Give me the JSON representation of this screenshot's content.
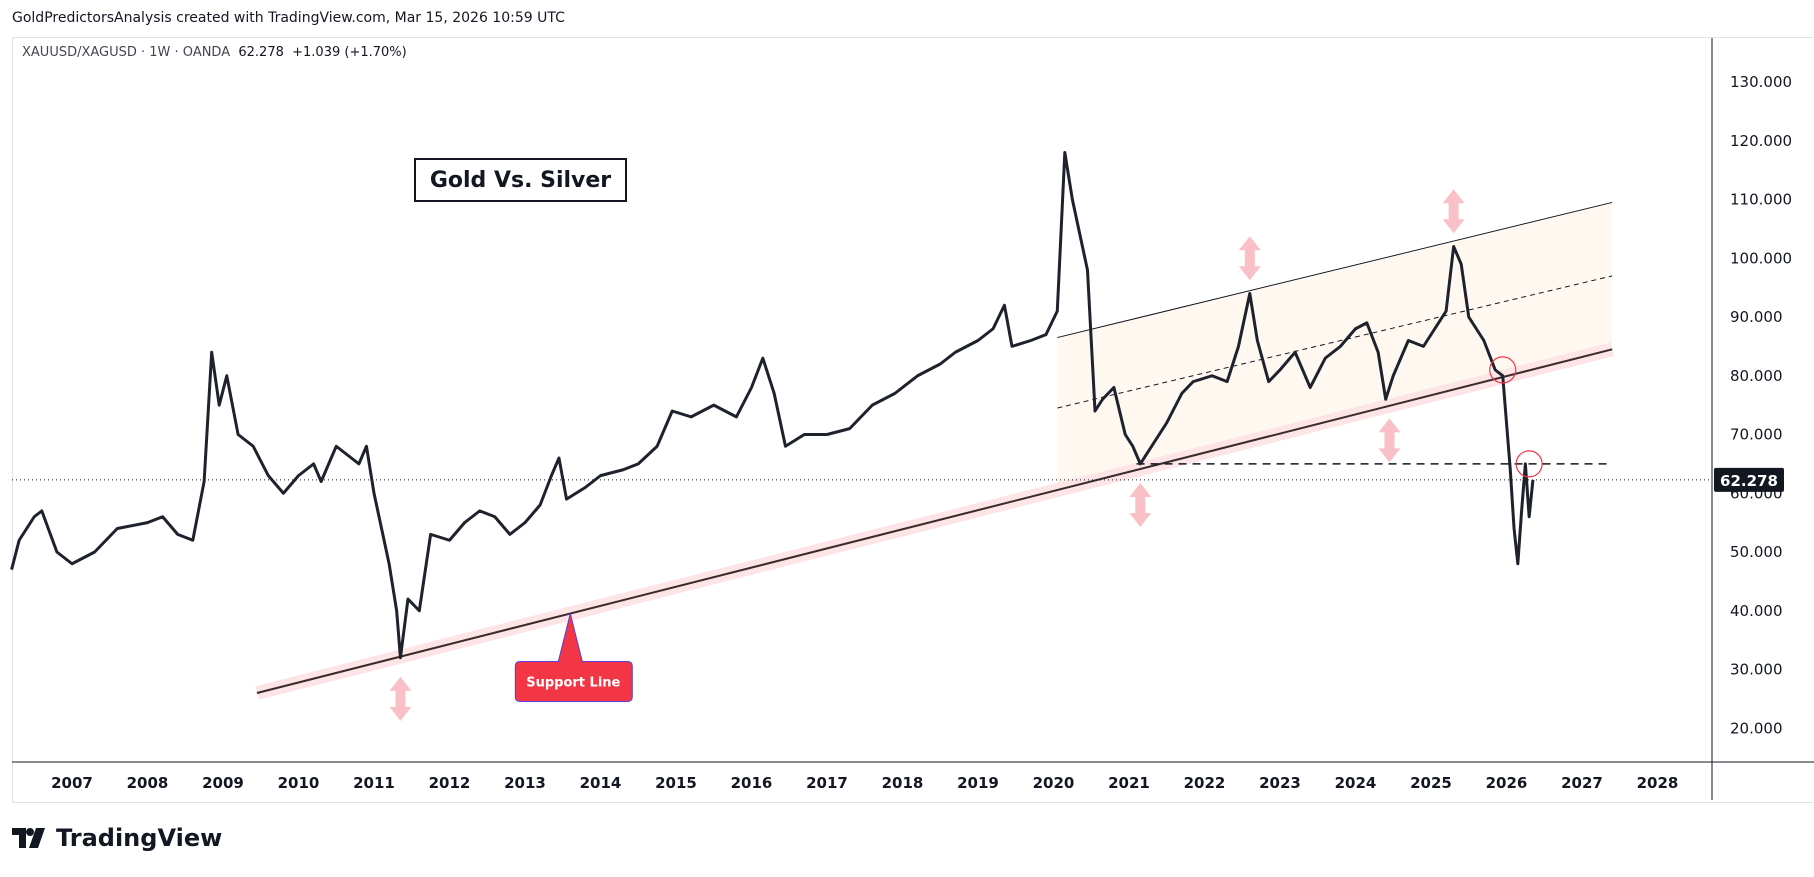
{
  "header": {
    "credit": "GoldPredictorsAnalysis created with TradingView.com, Mar 15, 2026 10:59 UTC"
  },
  "legend": {
    "symbol": "XAUUSD/XAGUSD · 1W · OANDA",
    "price": "62.278",
    "change": "+1.039 (+1.70%)"
  },
  "annotations": {
    "title": "Gold Vs. Silver",
    "callout": "Support Line"
  },
  "brand": {
    "name": "TradingView"
  },
  "chart_data": {
    "type": "line",
    "title": "Gold Vs. Silver",
    "series_name": "XAUUSD/XAGUSD",
    "current_price": 62.278,
    "current_price_label": "62.278",
    "ylim": [
      12,
      138
    ],
    "xlim": [
      2006.2,
      2029.3
    ],
    "yticks": [
      "130.000",
      "120.000",
      "110.000",
      "100.000",
      "90.000",
      "80.000",
      "70.000",
      "60.000",
      "50.000",
      "40.000",
      "30.000",
      "20.000"
    ],
    "ytick_values": [
      130,
      120,
      110,
      100,
      90,
      80,
      70,
      60,
      50,
      40,
      30,
      20
    ],
    "xticks": [
      "2007",
      "2008",
      "2009",
      "2010",
      "2011",
      "2012",
      "2013",
      "2014",
      "2015",
      "2016",
      "2017",
      "2018",
      "2019",
      "2020",
      "2021",
      "2022",
      "2023",
      "2024",
      "2025",
      "2026",
      "2027",
      "2028"
    ],
    "points": [
      [
        2006.2,
        47
      ],
      [
        2006.3,
        52
      ],
      [
        2006.5,
        56
      ],
      [
        2006.6,
        57
      ],
      [
        2006.8,
        50
      ],
      [
        2007.0,
        48
      ],
      [
        2007.3,
        50
      ],
      [
        2007.6,
        54
      ],
      [
        2008.0,
        55
      ],
      [
        2008.2,
        56
      ],
      [
        2008.4,
        53
      ],
      [
        2008.6,
        52
      ],
      [
        2008.75,
        62
      ],
      [
        2008.85,
        84
      ],
      [
        2008.95,
        75
      ],
      [
        2009.05,
        80
      ],
      [
        2009.2,
        70
      ],
      [
        2009.4,
        68
      ],
      [
        2009.6,
        63
      ],
      [
        2009.8,
        60
      ],
      [
        2010.0,
        63
      ],
      [
        2010.2,
        65
      ],
      [
        2010.3,
        62
      ],
      [
        2010.5,
        68
      ],
      [
        2010.8,
        65
      ],
      [
        2010.9,
        68
      ],
      [
        2011.0,
        60
      ],
      [
        2011.2,
        48
      ],
      [
        2011.3,
        40
      ],
      [
        2011.35,
        32
      ],
      [
        2011.45,
        42
      ],
      [
        2011.6,
        40
      ],
      [
        2011.75,
        53
      ],
      [
        2012.0,
        52
      ],
      [
        2012.2,
        55
      ],
      [
        2012.4,
        57
      ],
      [
        2012.6,
        56
      ],
      [
        2012.8,
        53
      ],
      [
        2013.0,
        55
      ],
      [
        2013.2,
        58
      ],
      [
        2013.35,
        63
      ],
      [
        2013.45,
        66
      ],
      [
        2013.55,
        59
      ],
      [
        2013.8,
        61
      ],
      [
        2014.0,
        63
      ],
      [
        2014.3,
        64
      ],
      [
        2014.5,
        65
      ],
      [
        2014.75,
        68
      ],
      [
        2014.95,
        74
      ],
      [
        2015.2,
        73
      ],
      [
        2015.5,
        75
      ],
      [
        2015.8,
        73
      ],
      [
        2016.0,
        78
      ],
      [
        2016.15,
        83
      ],
      [
        2016.3,
        77
      ],
      [
        2016.45,
        68
      ],
      [
        2016.7,
        70
      ],
      [
        2017.0,
        70
      ],
      [
        2017.3,
        71
      ],
      [
        2017.6,
        75
      ],
      [
        2017.9,
        77
      ],
      [
        2018.2,
        80
      ],
      [
        2018.5,
        82
      ],
      [
        2018.7,
        84
      ],
      [
        2019.0,
        86
      ],
      [
        2019.2,
        88
      ],
      [
        2019.35,
        92
      ],
      [
        2019.45,
        85
      ],
      [
        2019.7,
        86
      ],
      [
        2019.9,
        87
      ],
      [
        2020.05,
        91
      ],
      [
        2020.15,
        118
      ],
      [
        2020.25,
        110
      ],
      [
        2020.35,
        104
      ],
      [
        2020.45,
        98
      ],
      [
        2020.55,
        74
      ],
      [
        2020.65,
        76
      ],
      [
        2020.8,
        78
      ],
      [
        2020.95,
        70
      ],
      [
        2021.05,
        68
      ],
      [
        2021.15,
        65
      ],
      [
        2021.3,
        68
      ],
      [
        2021.5,
        72
      ],
      [
        2021.7,
        77
      ],
      [
        2021.85,
        79
      ],
      [
        2022.1,
        80
      ],
      [
        2022.3,
        79
      ],
      [
        2022.45,
        85
      ],
      [
        2022.6,
        94
      ],
      [
        2022.7,
        86
      ],
      [
        2022.85,
        79
      ],
      [
        2023.0,
        81
      ],
      [
        2023.2,
        84
      ],
      [
        2023.4,
        78
      ],
      [
        2023.6,
        83
      ],
      [
        2023.8,
        85
      ],
      [
        2024.0,
        88
      ],
      [
        2024.15,
        89
      ],
      [
        2024.3,
        84
      ],
      [
        2024.4,
        76
      ],
      [
        2024.5,
        80
      ],
      [
        2024.7,
        86
      ],
      [
        2024.9,
        85
      ],
      [
        2025.1,
        89
      ],
      [
        2025.2,
        91
      ],
      [
        2025.3,
        102
      ],
      [
        2025.4,
        99
      ],
      [
        2025.5,
        90
      ],
      [
        2025.7,
        86
      ],
      [
        2025.85,
        81
      ],
      [
        2025.95,
        80
      ],
      [
        2026.0,
        72
      ],
      [
        2026.05,
        64
      ],
      [
        2026.1,
        54
      ],
      [
        2026.15,
        48
      ],
      [
        2026.2,
        57
      ],
      [
        2026.25,
        65
      ],
      [
        2026.3,
        56
      ],
      [
        2026.35,
        62.278
      ]
    ],
    "drawings": {
      "support_line": [
        [
          2009.45,
          26
        ],
        [
          2027.4,
          84.5
        ]
      ],
      "channel_top": [
        [
          2020.05,
          86.5
        ],
        [
          2027.4,
          109.5
        ]
      ],
      "channel_mid": [
        [
          2020.05,
          74.5
        ],
        [
          2027.4,
          97
        ]
      ],
      "horizontal_level": [
        [
          2021.1,
          65
        ],
        [
          2027.4,
          65
        ]
      ],
      "up_arrows": [
        [
          2011.35,
          25
        ],
        [
          2021.15,
          58
        ],
        [
          2024.45,
          69
        ]
      ],
      "down_arrows": [
        [
          2022.6,
          100
        ],
        [
          2025.3,
          108
        ]
      ],
      "circles": [
        [
          2025.95,
          81
        ],
        [
          2026.3,
          65
        ]
      ]
    },
    "colors": {
      "line": "#1e222d",
      "support_band": "#fce4e7",
      "channel_fill": "#fff8f0",
      "arrow": "#f8b9c0",
      "circle": "#f23645",
      "callout": "#f23645"
    }
  }
}
